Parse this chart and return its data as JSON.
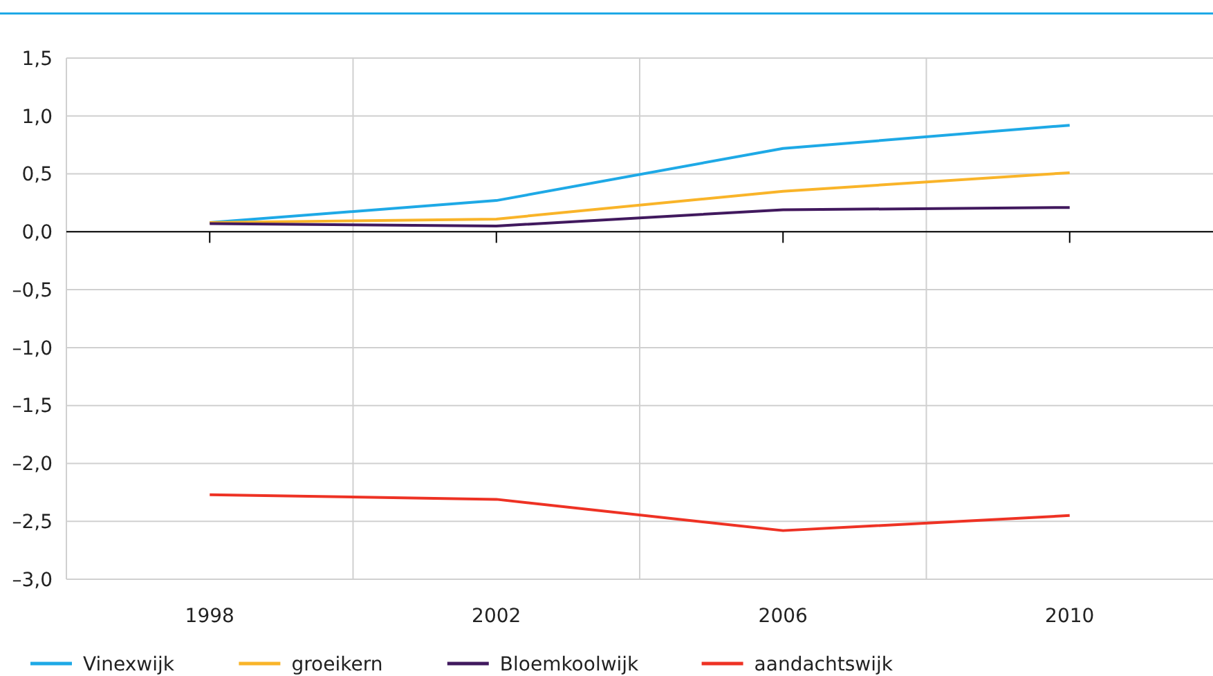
{
  "chart_data": {
    "type": "line",
    "x": [
      1998,
      2002,
      2006,
      2010
    ],
    "series": [
      {
        "name": "Vinexwijk",
        "color": "#1ea9e6",
        "values": [
          0.08,
          0.27,
          0.72,
          0.92
        ]
      },
      {
        "name": "groeikern",
        "color": "#f9b429",
        "values": [
          0.08,
          0.11,
          0.35,
          0.51
        ]
      },
      {
        "name": "Bloemkoolwijk",
        "color": "#41195e",
        "values": [
          0.07,
          0.05,
          0.19,
          0.21
        ]
      },
      {
        "name": "aandachtswijk",
        "color": "#ee3224",
        "values": [
          -2.27,
          -2.31,
          -2.58,
          -2.45
        ]
      }
    ],
    "xlim": [
      1996,
      2012
    ],
    "xticks": [
      1998,
      {
        "value": 2000,
        "label": null
      },
      2002,
      {
        "value": 2004,
        "label": null
      },
      2006,
      {
        "value": 2008,
        "label": null
      },
      2010
    ],
    "ylim": [
      -3,
      1.5
    ],
    "yticks": [
      {
        "value": 1.5,
        "label": "1,5"
      },
      {
        "value": 1,
        "label": "1,0"
      },
      {
        "value": 0.5,
        "label": "0,5"
      },
      {
        "value": 0,
        "label": "0,0"
      },
      {
        "value": -0.5,
        "label": "–0,5"
      },
      {
        "value": -1,
        "label": "–1,0"
      },
      {
        "value": -1.5,
        "label": "–1,5"
      },
      {
        "value": -2,
        "label": "–2,0"
      },
      {
        "value": -2.5,
        "label": "–2,5"
      },
      {
        "value": -3,
        "label": "–3,0"
      }
    ],
    "grid": true,
    "legend": "bottom",
    "marker": "none",
    "line_style": "solid"
  }
}
